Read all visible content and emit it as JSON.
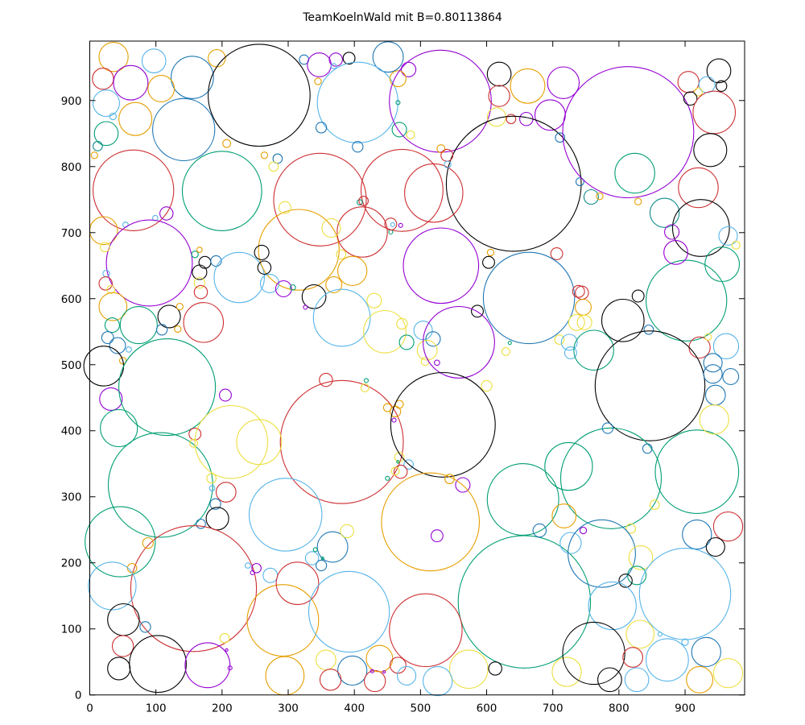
{
  "title": "TeamKoelnWald mit B=0.80113864",
  "axes": {
    "x_ticks": [
      0,
      100,
      200,
      300,
      400,
      500,
      600,
      700,
      800,
      900
    ],
    "y_ticks": [
      0,
      100,
      200,
      300,
      400,
      500,
      600,
      700,
      800,
      900
    ],
    "x_range": [
      0,
      990
    ],
    "y_range": [
      0,
      990
    ],
    "grid": false,
    "legend": "none"
  },
  "palette": {
    "k": "#000000",
    "r": "#cd2f32",
    "g": "#009e73",
    "p": "#9400d3",
    "o": "#e69f00",
    "s": "#56b4e9",
    "y": "#ecdf3f",
    "b": "#1f77b4",
    "t": "#0f8b8b"
  },
  "chart_data": {
    "type": "scatter",
    "note": "circle packing: each item is [x, y, radius, color-key] in data units",
    "title": "TeamKoelnWald mit B=0.80113864",
    "circles": [
      [
        36,
        966,
        22,
        "o"
      ],
      [
        97,
        960,
        18,
        "s"
      ],
      [
        155,
        935,
        32,
        "b"
      ],
      [
        192,
        964,
        13,
        "o"
      ],
      [
        256,
        908,
        77,
        "k"
      ],
      [
        20,
        933,
        16,
        "r"
      ],
      [
        62,
        927,
        26,
        "p"
      ],
      [
        108,
        918,
        20,
        "o"
      ],
      [
        25,
        896,
        20,
        "s"
      ],
      [
        35,
        876,
        5,
        "s"
      ],
      [
        69,
        872,
        25,
        "o"
      ],
      [
        142,
        856,
        47,
        "b"
      ],
      [
        25,
        850,
        18,
        "g"
      ],
      [
        12,
        831,
        7,
        "t"
      ],
      [
        7,
        817,
        5,
        "o"
      ],
      [
        66,
        764,
        61,
        "r"
      ],
      [
        200,
        763,
        60,
        "g"
      ],
      [
        207,
        835,
        6,
        "o"
      ],
      [
        324,
        962,
        7,
        "b"
      ],
      [
        347,
        954,
        18,
        "p"
      ],
      [
        372,
        962,
        10,
        "p"
      ],
      [
        392,
        964,
        9,
        "k"
      ],
      [
        451,
        966,
        23,
        "b"
      ],
      [
        369,
        952,
        4,
        "s"
      ],
      [
        345,
        929,
        5,
        "o"
      ],
      [
        405,
        897,
        61,
        "s"
      ],
      [
        482,
        947,
        11,
        "p"
      ],
      [
        466,
        933,
        12,
        "o"
      ],
      [
        466,
        897,
        3,
        "g"
      ],
      [
        350,
        859,
        8,
        "b"
      ],
      [
        468,
        856,
        11,
        "g"
      ],
      [
        485,
        848,
        6,
        "y"
      ],
      [
        405,
        830,
        8,
        "b"
      ],
      [
        264,
        817,
        5,
        "o"
      ],
      [
        284,
        812,
        7,
        "b"
      ],
      [
        278,
        800,
        7,
        "y"
      ],
      [
        348,
        750,
        70,
        "r"
      ],
      [
        472,
        764,
        62,
        "r"
      ],
      [
        408,
        746,
        4,
        "g"
      ],
      [
        414,
        748,
        7,
        "r"
      ],
      [
        530,
        899,
        77,
        "p"
      ],
      [
        619,
        940,
        18,
        "k"
      ],
      [
        662,
        922,
        26,
        "o"
      ],
      [
        716,
        927,
        24,
        "p"
      ],
      [
        619,
        907,
        16,
        "r"
      ],
      [
        696,
        878,
        23,
        "p"
      ],
      [
        615,
        875,
        14,
        "y"
      ],
      [
        637,
        872,
        7,
        "r"
      ],
      [
        660,
        872,
        10,
        "p"
      ],
      [
        641,
        774,
        102,
        "k"
      ],
      [
        520,
        760,
        44,
        "r"
      ],
      [
        531,
        827,
        6,
        "o"
      ],
      [
        540,
        817,
        9,
        "r"
      ],
      [
        541,
        803,
        5,
        "s"
      ],
      [
        711,
        844,
        7,
        "b"
      ],
      [
        741,
        777,
        6,
        "b"
      ],
      [
        814,
        852,
        99,
        "p"
      ],
      [
        905,
        928,
        16,
        "r"
      ],
      [
        951,
        945,
        18,
        "k"
      ],
      [
        933,
        924,
        12,
        "s"
      ],
      [
        955,
        922,
        8,
        "k"
      ],
      [
        920,
        913,
        6,
        "y"
      ],
      [
        908,
        903,
        10,
        "k"
      ],
      [
        944,
        882,
        32,
        "r"
      ],
      [
        938,
        825,
        25,
        "k"
      ],
      [
        920,
        768,
        30,
        "r"
      ],
      [
        869,
        730,
        22,
        "t"
      ],
      [
        758,
        754,
        11,
        "t"
      ],
      [
        771,
        755,
        5,
        "o"
      ],
      [
        829,
        747,
        5,
        "o"
      ],
      [
        824,
        790,
        30,
        "g"
      ],
      [
        21,
        703,
        21,
        "o"
      ],
      [
        116,
        729,
        10,
        "p"
      ],
      [
        99,
        722,
        4,
        "s"
      ],
      [
        54,
        712,
        4,
        "s"
      ],
      [
        90,
        654,
        65,
        "p"
      ],
      [
        23,
        678,
        7,
        "y"
      ],
      [
        25,
        638,
        5,
        "s"
      ],
      [
        24,
        623,
        10,
        "r"
      ],
      [
        32,
        614,
        6,
        "y"
      ],
      [
        35,
        588,
        21,
        "o"
      ],
      [
        74,
        560,
        28,
        "g"
      ],
      [
        120,
        573,
        17,
        "k"
      ],
      [
        159,
        667,
        5,
        "g"
      ],
      [
        166,
        674,
        4,
        "o"
      ],
      [
        174,
        655,
        9,
        "k"
      ],
      [
        191,
        657,
        8,
        "b"
      ],
      [
        166,
        640,
        11,
        "k"
      ],
      [
        166,
        624,
        8,
        "y"
      ],
      [
        168,
        610,
        10,
        "r"
      ],
      [
        226,
        632,
        38,
        "s"
      ],
      [
        172,
        564,
        30,
        "r"
      ],
      [
        136,
        588,
        5,
        "o"
      ],
      [
        133,
        554,
        5,
        "o"
      ],
      [
        109,
        553,
        8,
        "b"
      ],
      [
        34,
        560,
        11,
        "g"
      ],
      [
        27,
        541,
        9,
        "b"
      ],
      [
        42,
        529,
        12,
        "b"
      ],
      [
        59,
        523,
        4,
        "s"
      ],
      [
        50,
        506,
        5,
        "o"
      ],
      [
        316,
        674,
        61,
        "o"
      ],
      [
        412,
        701,
        38,
        "r"
      ],
      [
        365,
        707,
        14,
        "y"
      ],
      [
        295,
        738,
        9,
        "y"
      ],
      [
        260,
        670,
        11,
        "k"
      ],
      [
        264,
        647,
        10,
        "k"
      ],
      [
        272,
        623,
        14,
        "s"
      ],
      [
        293,
        615,
        12,
        "p"
      ],
      [
        307,
        617,
        4,
        "g"
      ],
      [
        339,
        603,
        18,
        "k"
      ],
      [
        369,
        621,
        12,
        "o"
      ],
      [
        397,
        642,
        22,
        "o"
      ],
      [
        380,
        667,
        7,
        "y"
      ],
      [
        470,
        711,
        3,
        "p"
      ],
      [
        458,
        712,
        3,
        "s"
      ],
      [
        455,
        701,
        3,
        "g"
      ],
      [
        455,
        713,
        9,
        "r"
      ],
      [
        381,
        571,
        43,
        "s"
      ],
      [
        326,
        587,
        3,
        "p"
      ],
      [
        430,
        597,
        11,
        "y"
      ],
      [
        446,
        550,
        32,
        "y"
      ],
      [
        472,
        562,
        8,
        "y"
      ],
      [
        479,
        534,
        11,
        "g"
      ],
      [
        606,
        670,
        5,
        "o"
      ],
      [
        603,
        655,
        9,
        "k"
      ],
      [
        706,
        668,
        9,
        "r"
      ],
      [
        664,
        601,
        69,
        "b"
      ],
      [
        586,
        581,
        9,
        "k"
      ],
      [
        739,
        611,
        9,
        "r"
      ],
      [
        736,
        564,
        12,
        "y"
      ],
      [
        710,
        538,
        7,
        "y"
      ],
      [
        725,
        534,
        12,
        "s"
      ],
      [
        727,
        518,
        9,
        "s"
      ],
      [
        629,
        520,
        6,
        "y"
      ],
      [
        635,
        533,
        2.4,
        "g"
      ],
      [
        504,
        552,
        14,
        "s"
      ],
      [
        519,
        539,
        11,
        "b"
      ],
      [
        510,
        522,
        15,
        "y"
      ],
      [
        507,
        505,
        6,
        "y"
      ],
      [
        525,
        503,
        4,
        "p"
      ],
      [
        531,
        650,
        57,
        "p"
      ],
      [
        558,
        534,
        54,
        "p"
      ],
      [
        902,
        597,
        61,
        "g"
      ],
      [
        924,
        707,
        43,
        "k"
      ],
      [
        880,
        701,
        11,
        "p"
      ],
      [
        886,
        670,
        18,
        "p"
      ],
      [
        965,
        695,
        14,
        "s"
      ],
      [
        977,
        681,
        6,
        "y"
      ],
      [
        956,
        652,
        26,
        "g"
      ],
      [
        806,
        567,
        32,
        "k"
      ],
      [
        829,
        604,
        9,
        "k"
      ],
      [
        744,
        609,
        10,
        "r"
      ],
      [
        746,
        587,
        12,
        "o"
      ],
      [
        748,
        564,
        11,
        "y"
      ],
      [
        845,
        553,
        7,
        "b"
      ],
      [
        762,
        522,
        30,
        "g"
      ],
      [
        922,
        526,
        16,
        "r"
      ],
      [
        935,
        542,
        5,
        "y"
      ],
      [
        962,
        528,
        19,
        "s"
      ],
      [
        942,
        503,
        14,
        "b"
      ],
      [
        21,
        498,
        30,
        "k"
      ],
      [
        32,
        448,
        17,
        "p"
      ],
      [
        44,
        404,
        28,
        "g"
      ],
      [
        117,
        466,
        73,
        "g"
      ],
      [
        107,
        318,
        79,
        "g"
      ],
      [
        159,
        395,
        9,
        "r"
      ],
      [
        157,
        381,
        6,
        "y"
      ],
      [
        214,
        383,
        55,
        "y"
      ],
      [
        205,
        454,
        9,
        "p"
      ],
      [
        184,
        328,
        7,
        "y"
      ],
      [
        185,
        313,
        4,
        "s"
      ],
      [
        206,
        307,
        15,
        "r"
      ],
      [
        190,
        289,
        8,
        "b"
      ],
      [
        193,
        267,
        17,
        "k"
      ],
      [
        168,
        259,
        7,
        "b"
      ],
      [
        381,
        383,
        93,
        "r"
      ],
      [
        357,
        477,
        10,
        "r"
      ],
      [
        418,
        476,
        3,
        "g"
      ],
      [
        416,
        465,
        6,
        "y"
      ],
      [
        256,
        383,
        34,
        "y"
      ],
      [
        296,
        273,
        55,
        "s"
      ],
      [
        450,
        435,
        6,
        "o"
      ],
      [
        462,
        429,
        8,
        "o"
      ],
      [
        468,
        440,
        6,
        "o"
      ],
      [
        460,
        416,
        3,
        "p"
      ],
      [
        468,
        360,
        7,
        "y"
      ],
      [
        466,
        353,
        2,
        "g"
      ],
      [
        482,
        349,
        7,
        "s"
      ],
      [
        470,
        338,
        10,
        "r"
      ],
      [
        462,
        339,
        6,
        "y"
      ],
      [
        450,
        328,
        3,
        "g"
      ],
      [
        534,
        409,
        79,
        "k"
      ],
      [
        600,
        468,
        8,
        "y"
      ],
      [
        655,
        296,
        54,
        "g"
      ],
      [
        724,
        346,
        36,
        "g"
      ],
      [
        544,
        327,
        7,
        "o"
      ],
      [
        564,
        318,
        11,
        "p"
      ],
      [
        515,
        262,
        74,
        "o"
      ],
      [
        847,
        468,
        83,
        "k"
      ],
      [
        788,
        328,
        76,
        "g"
      ],
      [
        918,
        338,
        63,
        "g"
      ],
      [
        942,
        486,
        14,
        "b"
      ],
      [
        969,
        482,
        12,
        "b"
      ],
      [
        946,
        454,
        15,
        "b"
      ],
      [
        944,
        417,
        22,
        "y"
      ],
      [
        783,
        404,
        8,
        "b"
      ],
      [
        843,
        373,
        7,
        "b"
      ],
      [
        854,
        288,
        7,
        "y"
      ],
      [
        818,
        252,
        7,
        "y"
      ],
      [
        965,
        255,
        22,
        "r"
      ],
      [
        746,
        249,
        5,
        "p"
      ],
      [
        46,
        232,
        53,
        "g"
      ],
      [
        157,
        161,
        95,
        "r"
      ],
      [
        88,
        230,
        8,
        "o"
      ],
      [
        64,
        192,
        7,
        "o"
      ],
      [
        34,
        165,
        36,
        "s"
      ],
      [
        51,
        114,
        24,
        "k"
      ],
      [
        84,
        103,
        8,
        "b"
      ],
      [
        50,
        74,
        16,
        "r"
      ],
      [
        44,
        40,
        17,
        "k"
      ],
      [
        103,
        47,
        43,
        "k"
      ],
      [
        178,
        45,
        34,
        "p"
      ],
      [
        204,
        86,
        7,
        "y"
      ],
      [
        207,
        68,
        2,
        "p"
      ],
      [
        212,
        41,
        3,
        "p"
      ],
      [
        292,
        113,
        54,
        "o"
      ],
      [
        239,
        196,
        4,
        "s"
      ],
      [
        246,
        185,
        3,
        "p"
      ],
      [
        252,
        192,
        7,
        "p"
      ],
      [
        273,
        181,
        11,
        "s"
      ],
      [
        367,
        224,
        23,
        "b"
      ],
      [
        336,
        207,
        10,
        "s"
      ],
      [
        350,
        196,
        8,
        "b"
      ],
      [
        341,
        220,
        3,
        "g"
      ],
      [
        352,
        207,
        2,
        "g"
      ],
      [
        389,
        248,
        10,
        "y"
      ],
      [
        314,
        169,
        32,
        "r"
      ],
      [
        392,
        126,
        61,
        "s"
      ],
      [
        295,
        29,
        29,
        "o"
      ],
      [
        357,
        53,
        15,
        "y"
      ],
      [
        397,
        37,
        22,
        "b"
      ],
      [
        364,
        23,
        16,
        "r"
      ],
      [
        431,
        21,
        16,
        "r"
      ],
      [
        438,
        55,
        20,
        "o"
      ],
      [
        427,
        36,
        2.4,
        "p"
      ],
      [
        445,
        35,
        2,
        "p"
      ],
      [
        466,
        45,
        12,
        "r"
      ],
      [
        479,
        29,
        14,
        "s"
      ],
      [
        657,
        141,
        100,
        "g"
      ],
      [
        508,
        98,
        55,
        "r"
      ],
      [
        573,
        39,
        29,
        "y"
      ],
      [
        613,
        40,
        10,
        "k"
      ],
      [
        526,
        21,
        22,
        "s"
      ],
      [
        721,
        35,
        22,
        "y"
      ],
      [
        525,
        241,
        9,
        "p"
      ],
      [
        680,
        249,
        10,
        "b"
      ],
      [
        727,
        230,
        16,
        "s"
      ],
      [
        717,
        271,
        18,
        "o"
      ],
      [
        774,
        214,
        51,
        "b"
      ],
      [
        918,
        243,
        22,
        "b"
      ],
      [
        946,
        224,
        14,
        "k"
      ],
      [
        833,
        208,
        18,
        "y"
      ],
      [
        827,
        181,
        14,
        "g"
      ],
      [
        810,
        173,
        10,
        "k"
      ],
      [
        900,
        153,
        69,
        "s"
      ],
      [
        790,
        135,
        36,
        "s"
      ],
      [
        762,
        63,
        47,
        "k"
      ],
      [
        832,
        92,
        21,
        "y"
      ],
      [
        821,
        57,
        15,
        "r"
      ],
      [
        827,
        23,
        18,
        "s"
      ],
      [
        786,
        23,
        18,
        "k"
      ],
      [
        873,
        53,
        32,
        "s"
      ],
      [
        932,
        65,
        22,
        "b"
      ],
      [
        922,
        23,
        20,
        "o"
      ],
      [
        965,
        33,
        22,
        "y"
      ],
      [
        862,
        92,
        3,
        "s"
      ],
      [
        900,
        80,
        5,
        "s"
      ]
    ]
  }
}
